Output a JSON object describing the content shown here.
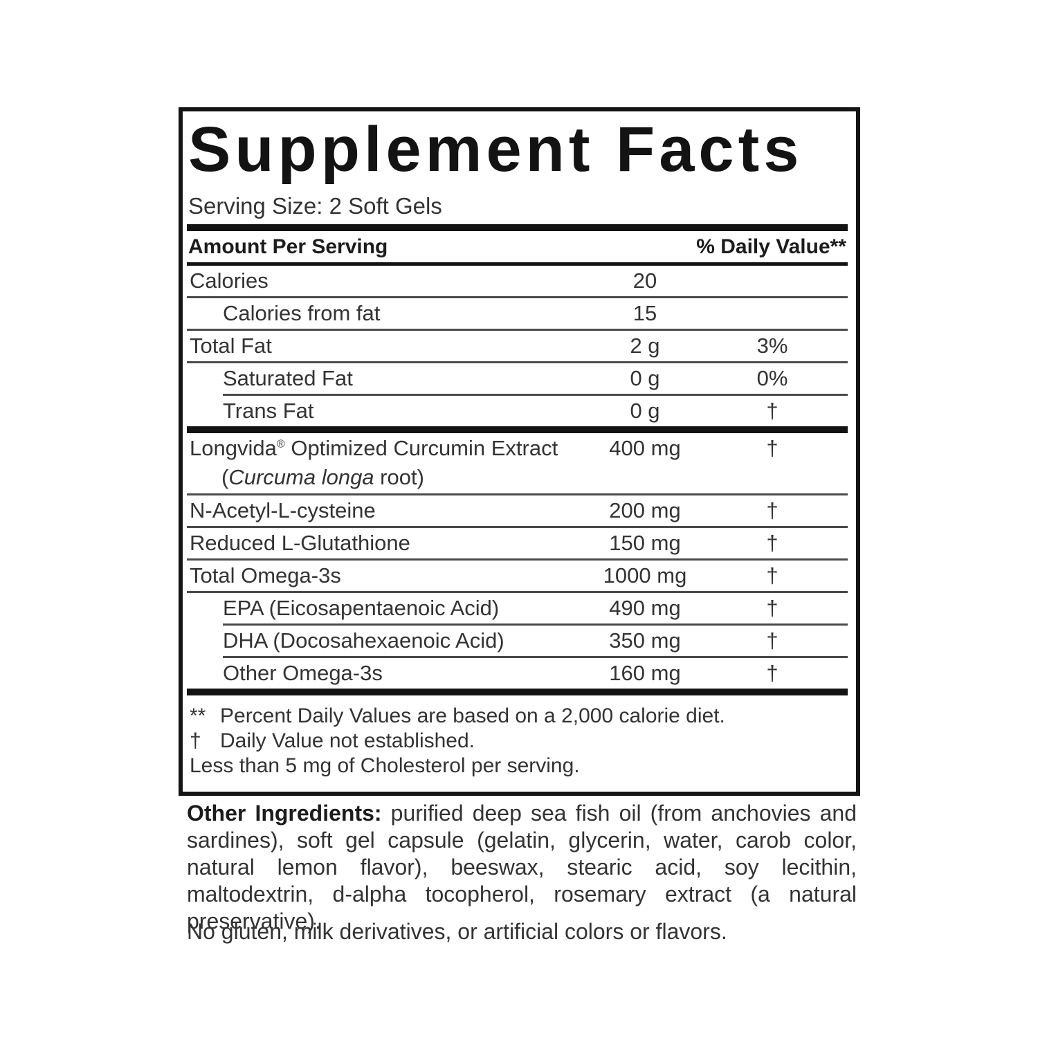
{
  "label": {
    "title": "Supplement Facts",
    "serving_size": "Serving Size: 2 Soft Gels",
    "header": {
      "amount": "Amount Per Serving",
      "daily_value": "% Daily Value**"
    },
    "rows": [
      {
        "name": "Calories",
        "amount": "20",
        "dv": ""
      },
      {
        "name": "Calories from fat",
        "amount": "15",
        "dv": ""
      },
      {
        "name": "Total Fat",
        "amount": "2 g",
        "dv": "3%"
      },
      {
        "name": "Saturated Fat",
        "amount": "0 g",
        "dv": "0%"
      },
      {
        "name": "Trans Fat",
        "amount": "0 g",
        "dv": "†"
      },
      {
        "name_pre": "Longvida",
        "reg": "®",
        "name_post": " Optimized Curcumin Extract",
        "sub_open": "(",
        "sub_italic": "Curcuma longa",
        "sub_close": " root)",
        "amount": "400 mg",
        "dv": "†"
      },
      {
        "name": "N-Acetyl-L-cysteine",
        "amount": "200 mg",
        "dv": "†"
      },
      {
        "name": "Reduced L-Glutathione",
        "amount": "150 mg",
        "dv": "†"
      },
      {
        "name": "Total Omega-3s",
        "amount": "1000 mg",
        "dv": "†"
      },
      {
        "name": "EPA (Eicosapentaenoic Acid)",
        "amount": "490 mg",
        "dv": "†"
      },
      {
        "name": "DHA (Docosahexaenoic Acid)",
        "amount": "350 mg",
        "dv": "†"
      },
      {
        "name": "Other Omega-3s",
        "amount": "160 mg",
        "dv": "†"
      }
    ],
    "footnotes": [
      {
        "symbol": "**",
        "text": "Percent Daily Values are based on a 2,000 calorie diet."
      },
      {
        "symbol": "†",
        "text": "Daily Value not established."
      },
      {
        "symbol": "",
        "text": "Less than 5 mg of Cholesterol per serving."
      }
    ],
    "other_ingredients": {
      "label": "Other Ingredients:",
      "text": " purified deep sea fish oil (from anchovies and sardines), soft gel capsule (gelatin, glycerin, water, carob color, natural lemon flavor), beeswax, stearic acid, soy lecithin, maltodextrin, d-alpha tocopherol, rosemary extract (a natural preservative)."
    },
    "allergen_statement": "No gluten, milk derivatives, or artificial colors or flavors.",
    "colors": {
      "text": "#2b2b2b",
      "heavy": "#131313",
      "rule": "#4a4a4a"
    }
  }
}
